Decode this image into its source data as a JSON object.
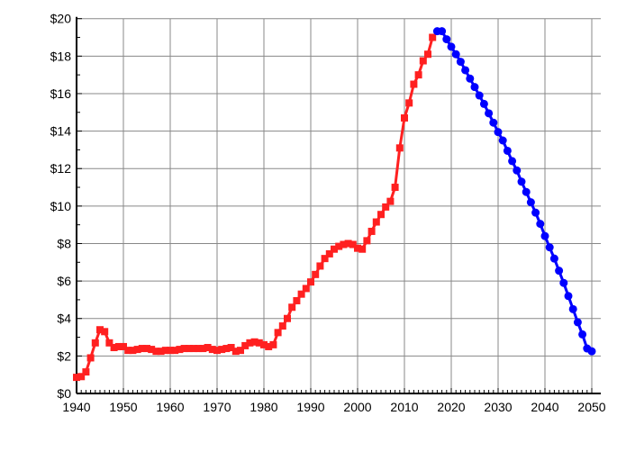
{
  "chart_data": {
    "type": "line",
    "title": "",
    "xlabel": "",
    "ylabel": "",
    "xlim": [
      1940,
      2050
    ],
    "ylim": [
      0,
      20
    ],
    "grid": true,
    "x_ticks": [
      "1940",
      "1950",
      "1960",
      "1970",
      "1980",
      "1990",
      "2000",
      "2010",
      "2020",
      "2030",
      "2040",
      "2050"
    ],
    "y_ticks": [
      "$0",
      "$2",
      "$4",
      "$6",
      "$8",
      "$10",
      "$12",
      "$14",
      "$16",
      "$18",
      "$20"
    ],
    "series": [
      {
        "color": "#ff2020",
        "marker": "square",
        "x_start": 1940,
        "values": [
          0.86,
          0.9,
          1.15,
          1.9,
          2.7,
          3.4,
          3.3,
          2.7,
          2.45,
          2.5,
          2.5,
          2.3,
          2.3,
          2.35,
          2.4,
          2.4,
          2.35,
          2.25,
          2.25,
          2.3,
          2.3,
          2.3,
          2.35,
          2.4,
          2.4,
          2.4,
          2.4,
          2.4,
          2.45,
          2.35,
          2.3,
          2.35,
          2.4,
          2.45,
          2.25,
          2.3,
          2.55,
          2.7,
          2.75,
          2.7,
          2.6,
          2.5,
          2.6,
          3.25,
          3.6,
          4.0,
          4.6,
          4.95,
          5.3,
          5.6,
          5.95,
          6.35,
          6.8,
          7.2,
          7.45,
          7.7,
          7.85,
          7.95,
          8.0,
          7.95,
          7.75,
          7.7,
          8.15,
          8.65,
          9.15,
          9.55,
          9.95,
          10.25,
          11.0,
          13.1,
          14.7,
          15.5,
          16.5,
          17.0,
          17.75,
          18.1,
          19.0
        ]
      },
      {
        "color": "#0000ff",
        "marker": "circle",
        "x_start": 2017,
        "values": [
          19.33,
          19.33,
          18.9,
          18.5,
          18.1,
          17.7,
          17.25,
          16.8,
          16.35,
          15.9,
          15.45,
          14.95,
          14.45,
          13.95,
          13.5,
          12.95,
          12.4,
          11.9,
          11.3,
          10.75,
          10.2,
          9.65,
          9.05,
          8.4,
          7.8,
          7.2,
          6.55,
          5.9,
          5.2,
          4.5,
          3.8,
          3.15,
          2.4,
          2.25
        ]
      }
    ]
  }
}
